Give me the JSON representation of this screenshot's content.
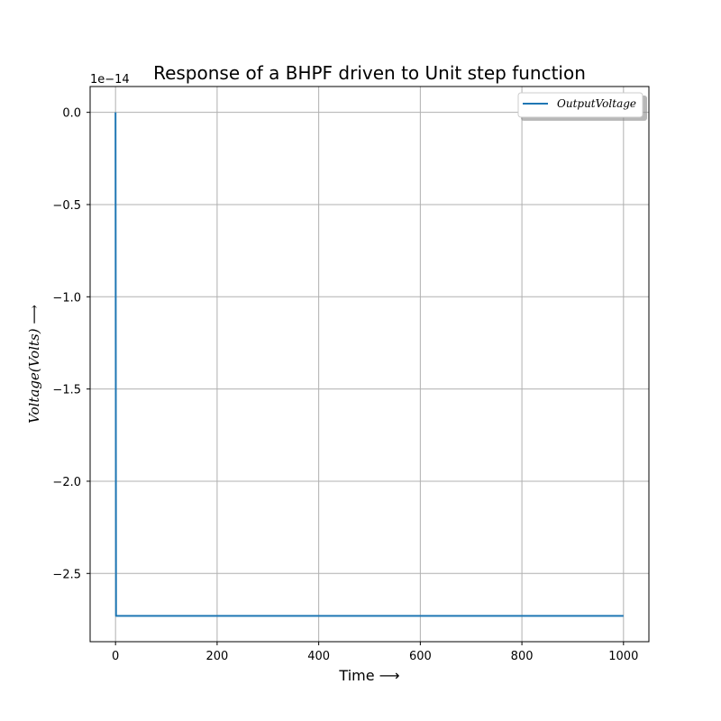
{
  "chart_data": {
    "type": "line",
    "title": "Response of a BHPF driven to Unit step function",
    "xlabel": "Time ⟶",
    "ylabel": "Voltage(Volts) ⟶",
    "y_offset_label": "1e−14",
    "xlim": [
      -50,
      1050
    ],
    "ylim": [
      -2.87,
      0.14
    ],
    "xticks": [
      0,
      200,
      400,
      600,
      800,
      1000
    ],
    "xtick_labels": [
      "0",
      "200",
      "400",
      "600",
      "800",
      "1000"
    ],
    "yticks": [
      0.0,
      -0.5,
      -1.0,
      -1.5,
      -2.0,
      -2.5
    ],
    "ytick_labels": [
      "0.0",
      "−0.5",
      "−1.0",
      "−1.5",
      "−2.0",
      "−2.5"
    ],
    "grid": true,
    "legend_position": "top-right",
    "series": [
      {
        "name": "OutputVoltage",
        "color": "#1f77b4",
        "x": [
          0,
          1,
          1000
        ],
        "y": [
          0.0,
          -2.73,
          -2.73
        ]
      }
    ]
  }
}
